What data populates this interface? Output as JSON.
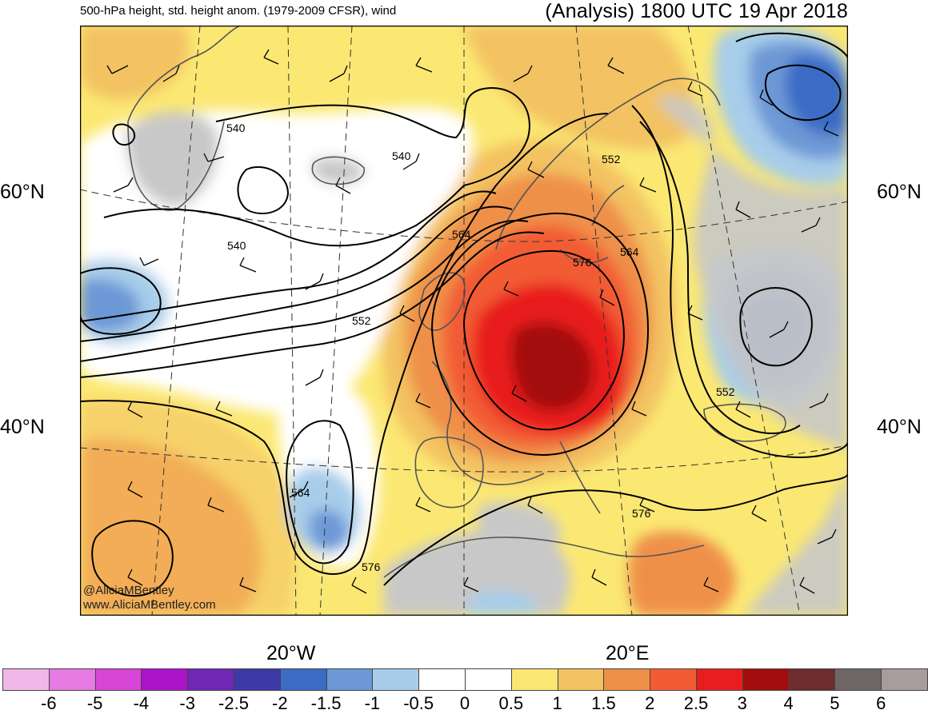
{
  "header": {
    "left_title": "500-hPa height, std. height anom. (1979-2009 CFSR), wind",
    "right_title": "(Analysis) 1800 UTC 19 Apr 2018"
  },
  "axes": {
    "lat_labels": [
      "60°N",
      "40°N"
    ],
    "lon_labels": [
      "20°W",
      "20°E"
    ]
  },
  "contour_labels": [
    "540",
    "540",
    "540",
    "552",
    "552",
    "552",
    "564",
    "564",
    "564",
    "576",
    "576",
    "576"
  ],
  "credit": {
    "handle": "@AliciaMBentley",
    "url": "www.AliciaMBentley.com"
  },
  "colorbar": {
    "ticks": [
      "-6",
      "-5",
      "-4",
      "-3",
      "-2.5",
      "-2",
      "-1.5",
      "-1",
      "-0.5",
      "0",
      "0.5",
      "1",
      "1.5",
      "2",
      "2.5",
      "3",
      "4",
      "5",
      "6"
    ],
    "colors": [
      "#efb8e8",
      "#e77ae3",
      "#d846d8",
      "#ad14c9",
      "#6f27b4",
      "#3e39a8",
      "#3a6cc5",
      "#6d98d6",
      "#a7cdea",
      "#ffffff",
      "#ffffff",
      "#fbe873",
      "#f3c262",
      "#ef9048",
      "#f25c35",
      "#e81e1e",
      "#a40d0d",
      "#6e2c2c",
      "#6f6666",
      "#a89c9c"
    ]
  },
  "colors": {
    "land_neutral": "#c8c8c8",
    "ocean_neutral": "#ffffff",
    "coastline": "#555555",
    "contour": "#000000"
  }
}
